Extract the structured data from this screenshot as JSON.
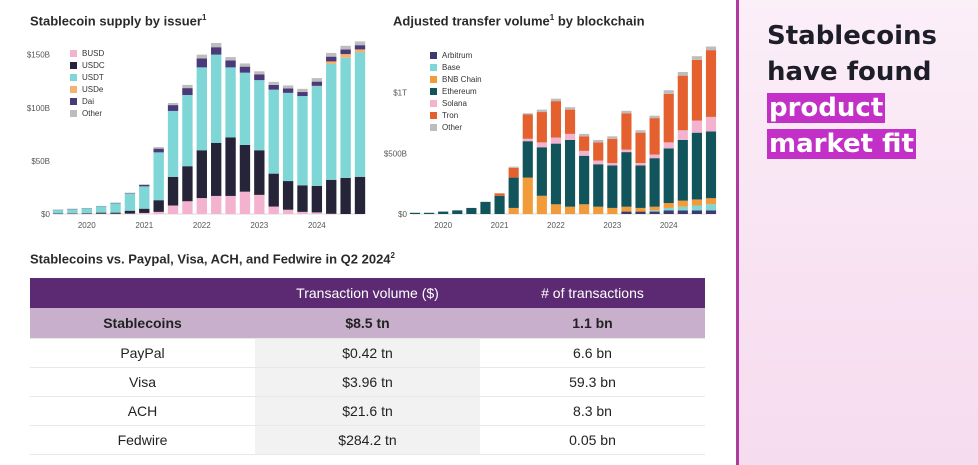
{
  "supply_chart": {
    "title": "Stablecoin supply by issuer",
    "title_sup": "1"
  },
  "volume_chart": {
    "title": "Adjusted transfer volume",
    "title_sup": "1",
    "title_suffix": "by blockchain"
  },
  "table": {
    "title": "Stablecoins vs. Paypal, Visa, ACH, and Fedwire in Q2 2024",
    "title_sup": "2",
    "headers": [
      "",
      "Transaction volume ($)",
      "# of transactions"
    ],
    "rows": [
      {
        "name": "Stablecoins",
        "volume": "$8.5 tn",
        "count": "1.1 bn"
      },
      {
        "name": "PayPal",
        "volume": "$0.42 tn",
        "count": "6.6 bn"
      },
      {
        "name": "Visa",
        "volume": "$3.96 tn",
        "count": "59.3 bn"
      },
      {
        "name": "ACH",
        "volume": "$21.6 tn",
        "count": "8.3 bn"
      },
      {
        "name": "Fedwire",
        "volume": "$284.2 tn",
        "count": "0.05 bn"
      }
    ]
  },
  "headline": {
    "line1": "Stablecoins",
    "line2": "have found",
    "line3": "product",
    "line4": "market fit"
  },
  "colors": {
    "accent": "#5c2a72",
    "highlight": "#c230c8"
  },
  "chart_data": [
    {
      "type": "area",
      "stacked": true,
      "title": "Stablecoin supply by issuer",
      "ylabel": "",
      "ylim": [
        0,
        160
      ],
      "yticks": [
        0,
        50,
        100,
        150
      ],
      "ytick_labels": [
        "$0",
        "$50B",
        "$100B",
        "$150B"
      ],
      "xtick_labels": [
        "2020",
        "2021",
        "2022",
        "2023",
        "2024"
      ],
      "legend_position": "top-left",
      "x": [
        "2019-07",
        "2019-10",
        "2020-01",
        "2020-04",
        "2020-07",
        "2020-10",
        "2021-01",
        "2021-04",
        "2021-07",
        "2021-10",
        "2022-01",
        "2022-04",
        "2022-07",
        "2022-10",
        "2023-01",
        "2023-04",
        "2023-07",
        "2023-10",
        "2024-01",
        "2024-04",
        "2024-07",
        "2024-09"
      ],
      "series": [
        {
          "name": "BUSD",
          "color": "#f3b3cf",
          "values": [
            0.1,
            0.2,
            0.2,
            0.3,
            0.2,
            0.4,
            1,
            2,
            8,
            12,
            15,
            17,
            17,
            21,
            18,
            7,
            4,
            2,
            1.5,
            0.2,
            0,
            0
          ]
        },
        {
          "name": "USDC",
          "color": "#252438",
          "values": [
            0.4,
            0.5,
            0.6,
            1,
            1.1,
            2.7,
            4,
            11,
            27,
            33,
            45,
            50,
            55,
            44,
            42,
            31,
            27,
            25,
            25,
            32,
            34,
            35
          ]
        },
        {
          "name": "USDT",
          "color": "#7fd6d6",
          "values": [
            3.5,
            4,
            4.6,
            6,
            9,
            16,
            21,
            45,
            62,
            67,
            78,
            83,
            66,
            68,
            66,
            79,
            83,
            84,
            94,
            109,
            113,
            117
          ]
        },
        {
          "name": "USDe",
          "color": "#f2b272",
          "values": [
            0,
            0,
            0,
            0,
            0,
            0,
            0,
            0,
            0,
            0,
            0,
            0,
            0,
            0,
            0,
            0,
            0,
            0,
            0.1,
            2.4,
            3.5,
            2.9
          ]
        },
        {
          "name": "Dai",
          "color": "#4b3a7a",
          "values": [
            0.1,
            0.1,
            0.1,
            0.1,
            0.2,
            0.5,
            1.3,
            3.5,
            5.5,
            6.5,
            8.5,
            7,
            6.5,
            5.7,
            5.3,
            4.5,
            4.2,
            3.8,
            4,
            4.5,
            4.3,
            4
          ]
        },
        {
          "name": "Other",
          "color": "#bdbdbd",
          "values": [
            0.1,
            0.1,
            0.1,
            0.2,
            0.3,
            0.5,
            0.7,
            1.5,
            2,
            3,
            3.5,
            4,
            3.2,
            3,
            3,
            2.8,
            2.8,
            3,
            3.3,
            3.5,
            3.5,
            3.5
          ]
        }
      ]
    },
    {
      "type": "area",
      "stacked": true,
      "title": "Adjusted transfer volume by blockchain",
      "ylabel": "",
      "ylim": [
        0,
        1.45
      ],
      "yticks": [
        0,
        0.5,
        1
      ],
      "ytick_labels": [
        "$0",
        "$500B",
        "$1T"
      ],
      "xtick_labels": [
        "2020",
        "2021",
        "2022",
        "2023",
        "2024"
      ],
      "legend_position": "top-left",
      "x": [
        "2019-07",
        "2019-10",
        "2020-01",
        "2020-04",
        "2020-07",
        "2020-10",
        "2021-01",
        "2021-04",
        "2021-07",
        "2021-10",
        "2022-01",
        "2022-04",
        "2022-07",
        "2022-10",
        "2023-01",
        "2023-04",
        "2023-07",
        "2023-10",
        "2024-01",
        "2024-04",
        "2024-07",
        "2024-09"
      ],
      "series": [
        {
          "name": "Arbitrum",
          "color": "#3d3a6e",
          "values": [
            0,
            0,
            0,
            0,
            0,
            0,
            0,
            0,
            0,
            0,
            0,
            0,
            0,
            0,
            0,
            0.02,
            0.02,
            0.02,
            0.03,
            0.03,
            0.03,
            0.03
          ]
        },
        {
          "name": "Base",
          "color": "#7fd6d6",
          "values": [
            0,
            0,
            0,
            0,
            0,
            0,
            0,
            0,
            0,
            0,
            0,
            0,
            0,
            0,
            0,
            0,
            0,
            0.01,
            0.02,
            0.03,
            0.04,
            0.05
          ]
        },
        {
          "name": "BNB Chain",
          "color": "#f29b3a",
          "values": [
            0,
            0,
            0,
            0,
            0,
            0,
            0,
            0.05,
            0.3,
            0.15,
            0.08,
            0.06,
            0.08,
            0.06,
            0.05,
            0.04,
            0.03,
            0.03,
            0.04,
            0.05,
            0.05,
            0.05
          ]
        },
        {
          "name": "Ethereum",
          "color": "#12545c",
          "values": [
            0.01,
            0.01,
            0.02,
            0.03,
            0.05,
            0.1,
            0.15,
            0.25,
            0.3,
            0.4,
            0.5,
            0.55,
            0.4,
            0.35,
            0.35,
            0.45,
            0.35,
            0.4,
            0.45,
            0.5,
            0.55,
            0.55
          ]
        },
        {
          "name": "Solana",
          "color": "#f3b3cf",
          "values": [
            0,
            0,
            0,
            0,
            0,
            0,
            0,
            0,
            0.02,
            0.04,
            0.05,
            0.05,
            0.04,
            0.03,
            0.02,
            0.02,
            0.02,
            0.03,
            0.05,
            0.08,
            0.1,
            0.12
          ]
        },
        {
          "name": "Tron",
          "color": "#e4602e",
          "values": [
            0,
            0,
            0,
            0,
            0,
            0,
            0.02,
            0.08,
            0.2,
            0.25,
            0.3,
            0.2,
            0.12,
            0.15,
            0.2,
            0.3,
            0.25,
            0.3,
            0.4,
            0.45,
            0.5,
            0.55
          ]
        },
        {
          "name": "Other",
          "color": "#bdbdbd",
          "values": [
            0,
            0,
            0,
            0,
            0,
            0,
            0,
            0.01,
            0.01,
            0.02,
            0.02,
            0.02,
            0.02,
            0.02,
            0.02,
            0.02,
            0.02,
            0.02,
            0.03,
            0.03,
            0.03,
            0.03
          ]
        }
      ]
    }
  ]
}
